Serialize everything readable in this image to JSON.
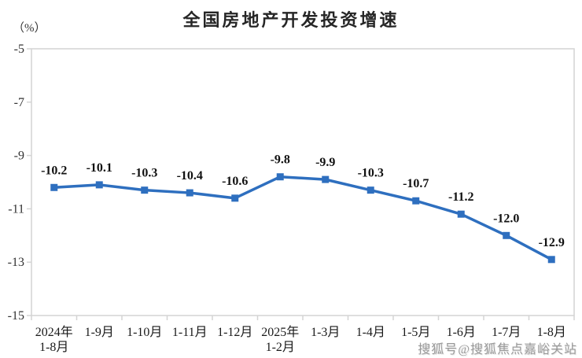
{
  "page": {
    "background": "#ffffff"
  },
  "watermark": {
    "text": "搜狐号@搜狐焦点嘉峪关站",
    "color": "#9a9a9a"
  },
  "chart_data": {
    "type": "line",
    "title": "全国房地产开发投资增速",
    "unit_label": "（%）",
    "xlabel": "",
    "ylabel": "（%）",
    "categories": [
      [
        "2024年",
        "1-8月"
      ],
      [
        "1-9月"
      ],
      [
        "1-10月"
      ],
      [
        "1-11月"
      ],
      [
        "1-12月"
      ],
      [
        "2025年",
        "1-2月"
      ],
      [
        "1-3月"
      ],
      [
        "1-4月"
      ],
      [
        "1-5月"
      ],
      [
        "1-6月"
      ],
      [
        "1-7月"
      ],
      [
        "1-8月"
      ]
    ],
    "values": [
      -10.2,
      -10.1,
      -10.3,
      -10.4,
      -10.6,
      -9.8,
      -9.9,
      -10.3,
      -10.7,
      -11.2,
      -12.0,
      -12.9
    ],
    "point_labels": [
      "-10.2",
      "-10.1",
      "-10.3",
      "-10.4",
      "-10.6",
      "-9.8",
      "-9.9",
      "-10.3",
      "-10.7",
      "-11.2",
      "-12.0",
      "-12.9"
    ],
    "y_ticks": [
      -5,
      -7,
      -9,
      -11,
      -13,
      -15
    ],
    "ylim": [
      -15,
      -5
    ],
    "grid": false,
    "legend": null,
    "marker": "square",
    "line_color": "#2e6fbf",
    "axis_color": "#d4d4d4",
    "data_label_color": "#111111",
    "tick_label_color": "#333333",
    "category_label_color": "#1a1a1a"
  }
}
